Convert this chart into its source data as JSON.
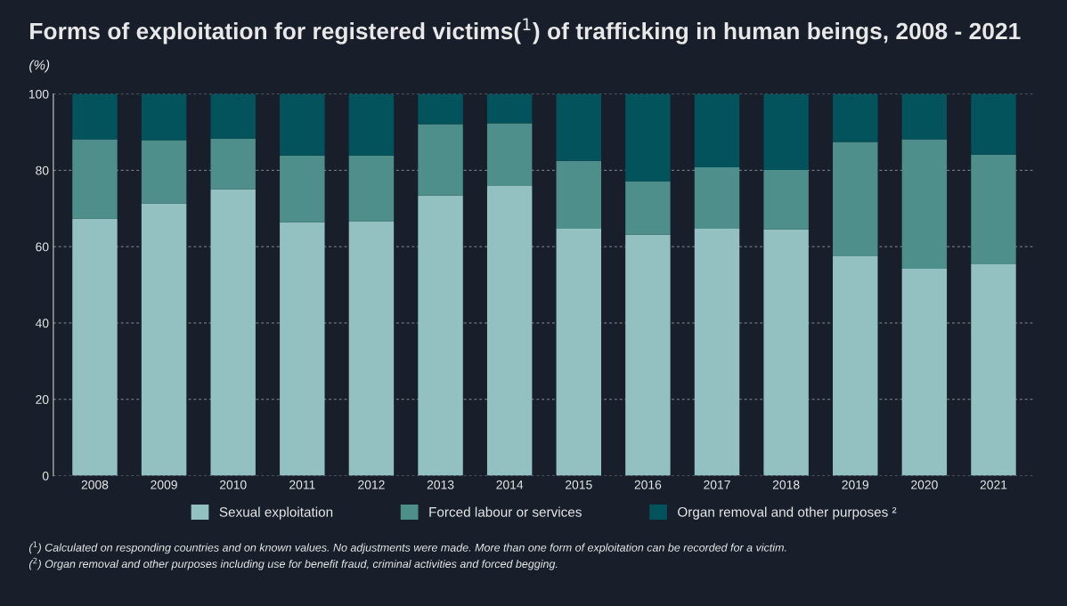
{
  "chart_data": {
    "type": "bar",
    "title": "Forms of exploitation for registered victims($^{1}$) of trafficking in human beings, 2008 - 2021",
    "subtitle": "(%)",
    "categories": [
      "2008",
      "2009",
      "2010",
      "2011",
      "2012",
      "2013",
      "2014",
      "2015",
      "2016",
      "2017",
      "2018",
      "2019",
      "2020",
      "2021"
    ],
    "series": [
      {
        "name": "Sexual exploitation",
        "color": "#93c1c1",
        "values": [
          67.3,
          71.3,
          75.0,
          66.4,
          66.6,
          73.4,
          75.9,
          64.7,
          63.1,
          64.7,
          64.5,
          57.5,
          54.2,
          55.4
        ]
      },
      {
        "name": "Forced labour or services",
        "color": "#4e8f8b",
        "values": [
          20.8,
          16.6,
          13.3,
          17.5,
          17.3,
          18.7,
          16.4,
          17.8,
          14.0,
          16.1,
          15.6,
          29.9,
          33.9,
          28.7
        ]
      },
      {
        "name": "Organ removal and other purposes ²",
        "color": "#03535d",
        "values": [
          11.9,
          12.1,
          11.7,
          16.1,
          16.1,
          7.9,
          7.7,
          17.5,
          22.9,
          19.2,
          19.9,
          12.6,
          11.9,
          15.9
        ]
      }
    ],
    "stacked": true,
    "ylim": [
      0,
      100
    ],
    "yticks": [
      0,
      20,
      40,
      60,
      80,
      100
    ],
    "grid": "y",
    "legend": "bottom",
    "annotations": [
      "($^{1}$) Calculated on responding countries and on known values. No adjustments were made. More than one form of exploitation can be recorded for a victim.",
      "($^{2}$) Organ removal and other purposes including use for benefit fraud, criminal activities and forced begging."
    ]
  }
}
